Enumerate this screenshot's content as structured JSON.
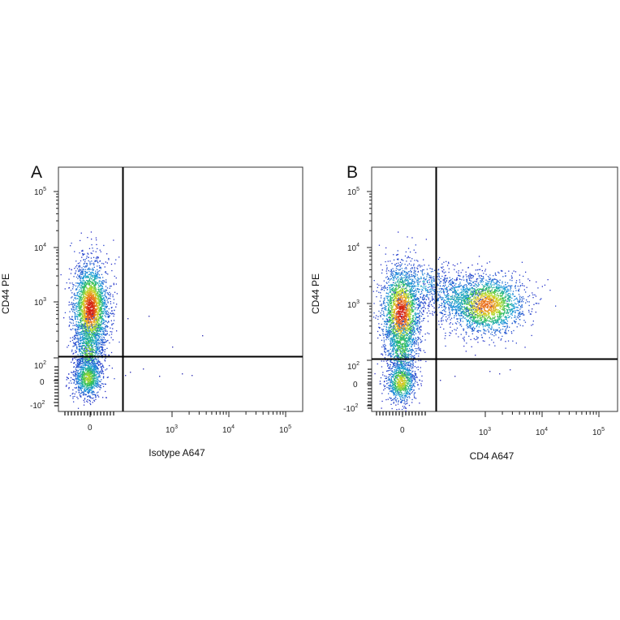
{
  "chart_data": [
    {
      "type": "scatter",
      "panel_label": "A",
      "xlabel": "Isotype A647",
      "ylabel": "CD44 PE",
      "x_scale": "biexponential",
      "y_scale": "biexponential",
      "x_ticks": [
        "0",
        "10^3",
        "10^4",
        "10^5"
      ],
      "y_ticks": [
        "10^5",
        "10^4",
        "10^3",
        "10^2",
        "0",
        "-10^2"
      ],
      "gate": {
        "x": 250,
        "y": 120
      },
      "color_scale": "density (blue-green-yellow-red)",
      "populations": [
        {
          "x_center": 0,
          "y_center": 800,
          "events": "major"
        },
        {
          "x_center": 0,
          "y_center": 0,
          "events": "minor"
        }
      ],
      "quadrant_events": {
        "upper_right": "sparse",
        "lower_right": "sparse"
      }
    },
    {
      "type": "scatter",
      "panel_label": "B",
      "xlabel": "CD4 A647",
      "ylabel": "CD44 PE",
      "x_scale": "biexponential",
      "y_scale": "biexponential",
      "x_ticks": [
        "0",
        "10^3",
        "10^4",
        "10^5"
      ],
      "y_ticks": [
        "10^5",
        "10^4",
        "10^3",
        "10^2",
        "0",
        "-10^2"
      ],
      "gate": {
        "x": 250,
        "y": 120
      },
      "color_scale": "density (blue-green-yellow-red)",
      "populations": [
        {
          "x_center": 0,
          "y_center": 700,
          "events": "CD4-negative CD44+"
        },
        {
          "x_center": 0,
          "y_center": 0,
          "events": "CD4-negative CD44-low"
        },
        {
          "x_center": 1500,
          "y_center": 800,
          "events": "CD4+ CD44+"
        }
      ]
    }
  ]
}
